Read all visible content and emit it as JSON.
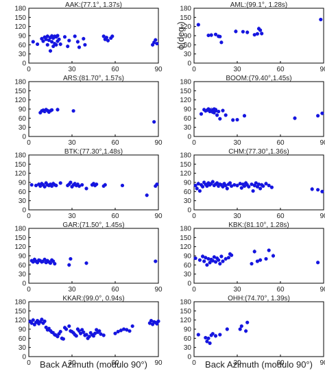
{
  "figure": {
    "ylabel": "ϕ(deg.)",
    "xlabel": "Back Azimuth (modulo 90°)"
  },
  "style": {
    "point_color": "#1515e0",
    "errorbar_color": "#c8c8c8",
    "frame_color": "#000000"
  },
  "chart_data": [
    {
      "type": "scatter",
      "title": "AAK:(77.1°, 1.37s)",
      "xlim": [
        0,
        90
      ],
      "ylim": [
        0,
        180
      ],
      "xticks": [
        "0",
        "30",
        "60",
        "90"
      ],
      "yticks": [
        "0",
        "30",
        "60",
        "90",
        "120",
        "150",
        "180"
      ],
      "x": [
        3,
        6,
        9,
        10,
        11,
        12,
        13,
        13,
        14,
        15,
        15,
        16,
        16,
        17,
        17,
        18,
        18,
        19,
        19,
        20,
        20,
        21,
        22,
        25,
        27,
        28,
        32,
        34,
        35,
        38,
        39,
        52,
        53,
        54,
        55,
        57,
        58,
        86,
        87,
        88,
        89
      ],
      "y": [
        70,
        62,
        80,
        72,
        85,
        78,
        60,
        88,
        75,
        40,
        84,
        70,
        89,
        55,
        82,
        64,
        88,
        60,
        86,
        72,
        90,
        78,
        62,
        86,
        55,
        74,
        88,
        70,
        52,
        80,
        60,
        88,
        78,
        84,
        74,
        82,
        88,
        60,
        68,
        76,
        64
      ]
    },
    {
      "type": "scatter",
      "title": "AML:(99.1°, 1.28s)",
      "xlim": [
        0,
        90
      ],
      "ylim": [
        0,
        180
      ],
      "xticks": [
        "0",
        "30",
        "60",
        "90"
      ],
      "yticks": [
        "0",
        "30",
        "60",
        "90",
        "120",
        "150",
        "180"
      ],
      "x": [
        3,
        10,
        12,
        15,
        17,
        18,
        19,
        29,
        34,
        37,
        42,
        44,
        45,
        46,
        47,
        88
      ],
      "y": [
        126,
        91,
        92,
        94,
        88,
        87,
        68,
        104,
        103,
        101,
        93,
        96,
        113,
        108,
        97,
        143
      ]
    },
    {
      "type": "scatter",
      "title": "ARS:(81.70°, 1.57s)",
      "xlim": [
        0,
        90
      ],
      "ylim": [
        0,
        180
      ],
      "xticks": [
        "0",
        "30",
        "60",
        "90"
      ],
      "yticks": [
        "0",
        "30",
        "60",
        "90",
        "120",
        "150",
        "180"
      ],
      "x": [
        8,
        9,
        10,
        11,
        12,
        13,
        14,
        15,
        16,
        20,
        31,
        87
      ],
      "y": [
        78,
        84,
        86,
        82,
        88,
        85,
        80,
        84,
        87,
        88,
        84,
        48
      ]
    },
    {
      "type": "scatter",
      "title": "BOOM:(79.40°,1.45s)",
      "xlim": [
        0,
        90
      ],
      "ylim": [
        0,
        180
      ],
      "xticks": [
        "0",
        "30",
        "60",
        "90"
      ],
      "yticks": [
        "0",
        "30",
        "60",
        "90",
        "120",
        "150",
        "180"
      ],
      "x": [
        5,
        7,
        8,
        9,
        10,
        11,
        12,
        12,
        13,
        13,
        14,
        14,
        15,
        15,
        16,
        17,
        18,
        20,
        22,
        27,
        30,
        35,
        70,
        86,
        89
      ],
      "y": [
        74,
        88,
        84,
        86,
        90,
        82,
        88,
        84,
        80,
        86,
        90,
        78,
        84,
        88,
        70,
        82,
        58,
        85,
        70,
        54,
        55,
        68,
        60,
        68,
        76
      ]
    },
    {
      "type": "scatter",
      "title": "BTK:(77.30°,1.48s)",
      "xlim": [
        0,
        90
      ],
      "ylim": [
        0,
        180
      ],
      "xticks": [
        "0",
        "30",
        "60",
        "90"
      ],
      "yticks": [
        "0",
        "30",
        "60",
        "90",
        "120",
        "150",
        "180"
      ],
      "x": [
        2,
        5,
        7,
        8,
        9,
        10,
        11,
        12,
        13,
        14,
        15,
        16,
        17,
        18,
        19,
        22,
        27,
        28,
        29,
        30,
        31,
        32,
        33,
        34,
        35,
        37,
        40,
        44,
        45,
        46,
        47,
        52,
        53,
        65,
        82,
        88,
        89
      ],
      "y": [
        82,
        80,
        84,
        78,
        86,
        82,
        76,
        88,
        82,
        80,
        84,
        78,
        86,
        82,
        80,
        88,
        80,
        84,
        90,
        76,
        82,
        86,
        80,
        84,
        78,
        82,
        70,
        82,
        86,
        80,
        84,
        78,
        82,
        80,
        48,
        78,
        84
      ]
    },
    {
      "type": "scatter",
      "title": "CHM:(77.30°,1.36s)",
      "xlim": [
        0,
        90
      ],
      "ylim": [
        0,
        180
      ],
      "xticks": [
        "0",
        "30",
        "60",
        "90"
      ],
      "yticks": [
        "0",
        "30",
        "60",
        "90",
        "120",
        "150",
        "180"
      ],
      "x": [
        1,
        2,
        3,
        4,
        5,
        6,
        7,
        8,
        9,
        10,
        11,
        12,
        13,
        14,
        15,
        16,
        17,
        18,
        19,
        20,
        21,
        22,
        23,
        24,
        25,
        26,
        28,
        30,
        32,
        33,
        34,
        35,
        36,
        37,
        38,
        40,
        41,
        42,
        43,
        44,
        45,
        46,
        47,
        48,
        50,
        52,
        54,
        82,
        86,
        89
      ],
      "y": [
        80,
        70,
        86,
        62,
        82,
        76,
        90,
        84,
        78,
        88,
        82,
        86,
        92,
        80,
        84,
        88,
        78,
        84,
        82,
        76,
        86,
        80,
        70,
        84,
        88,
        78,
        82,
        80,
        86,
        72,
        84,
        78,
        88,
        82,
        76,
        84,
        62,
        80,
        88,
        76,
        84,
        70,
        82,
        78,
        86,
        80,
        74,
        68,
        66,
        60
      ]
    },
    {
      "type": "scatter",
      "title": "GAR:(71.50°, 1.45s)",
      "xlim": [
        0,
        90
      ],
      "ylim": [
        0,
        180
      ],
      "xticks": [
        "0",
        "30",
        "60",
        "90"
      ],
      "yticks": [
        "0",
        "30",
        "60",
        "90",
        "120",
        "150",
        "180"
      ],
      "x": [
        2,
        3,
        4,
        5,
        6,
        7,
        8,
        9,
        10,
        11,
        12,
        13,
        14,
        15,
        16,
        17,
        18,
        28,
        29,
        40,
        88
      ],
      "y": [
        74,
        70,
        78,
        72,
        68,
        76,
        74,
        70,
        72,
        78,
        68,
        74,
        70,
        66,
        76,
        72,
        64,
        60,
        80,
        66,
        72
      ]
    },
    {
      "type": "scatter",
      "title": "KBK:(81.10°, 1.28s)",
      "xlim": [
        0,
        90
      ],
      "ylim": [
        0,
        180
      ],
      "xticks": [
        "0",
        "30",
        "60",
        "90"
      ],
      "yticks": [
        "0",
        "30",
        "60",
        "90",
        "120",
        "150",
        "180"
      ],
      "x": [
        1,
        4,
        6,
        7,
        8,
        9,
        10,
        11,
        12,
        13,
        14,
        15,
        16,
        17,
        18,
        19,
        20,
        22,
        24,
        25,
        26,
        40,
        42,
        44,
        46,
        50,
        52,
        55,
        86
      ],
      "y": [
        82,
        76,
        88,
        72,
        84,
        60,
        80,
        68,
        78,
        74,
        86,
        70,
        82,
        76,
        64,
        88,
        72,
        80,
        84,
        96,
        92,
        64,
        104,
        72,
        76,
        80,
        108,
        90,
        68
      ]
    },
    {
      "type": "scatter",
      "title": "KKAR:(99.0°, 0.94s)",
      "xlim": [
        0,
        90
      ],
      "ylim": [
        0,
        180
      ],
      "xticks": [
        "0",
        "30",
        "60",
        "90"
      ],
      "yticks": [
        "0",
        "30",
        "60",
        "90",
        "120",
        "150",
        "180"
      ],
      "x": [
        1,
        2,
        3,
        4,
        5,
        6,
        7,
        8,
        9,
        10,
        11,
        12,
        13,
        14,
        15,
        16,
        17,
        18,
        19,
        20,
        21,
        22,
        23,
        24,
        25,
        26,
        28,
        29,
        30,
        31,
        32,
        33,
        34,
        35,
        36,
        37,
        38,
        39,
        40,
        41,
        42,
        43,
        44,
        45,
        46,
        47,
        48,
        49,
        50,
        52,
        60,
        62,
        64,
        66,
        68,
        70,
        72,
        84,
        85,
        86,
        87,
        88,
        89,
        90
      ],
      "y": [
        115,
        110,
        120,
        105,
        112,
        118,
        108,
        114,
        122,
        110,
        116,
        96,
        88,
        92,
        85,
        80,
        78,
        72,
        70,
        66,
        75,
        82,
        60,
        58,
        95,
        90,
        100,
        84,
        82,
        78,
        72,
        68,
        90,
        84,
        76,
        88,
        80,
        70,
        72,
        60,
        66,
        78,
        72,
        68,
        76,
        88,
        80,
        84,
        74,
        70,
        76,
        82,
        86,
        90,
        88,
        84,
        100,
        110,
        118,
        106,
        114,
        112,
        108,
        116
      ]
    },
    {
      "type": "scatter",
      "title": "OHH:(74.70°, 1.39s)",
      "xlim": [
        0,
        90
      ],
      "ylim": [
        0,
        180
      ],
      "xticks": [
        "0",
        "30",
        "60",
        "90"
      ],
      "yticks": [
        "0",
        "30",
        "60",
        "90",
        "120",
        "150",
        "180"
      ],
      "x": [
        3,
        8,
        9,
        10,
        11,
        12,
        13,
        15,
        18,
        23,
        32,
        33,
        36,
        37
      ],
      "y": [
        72,
        62,
        50,
        60,
        44,
        70,
        75,
        68,
        72,
        90,
        90,
        100,
        84,
        112
      ]
    }
  ]
}
